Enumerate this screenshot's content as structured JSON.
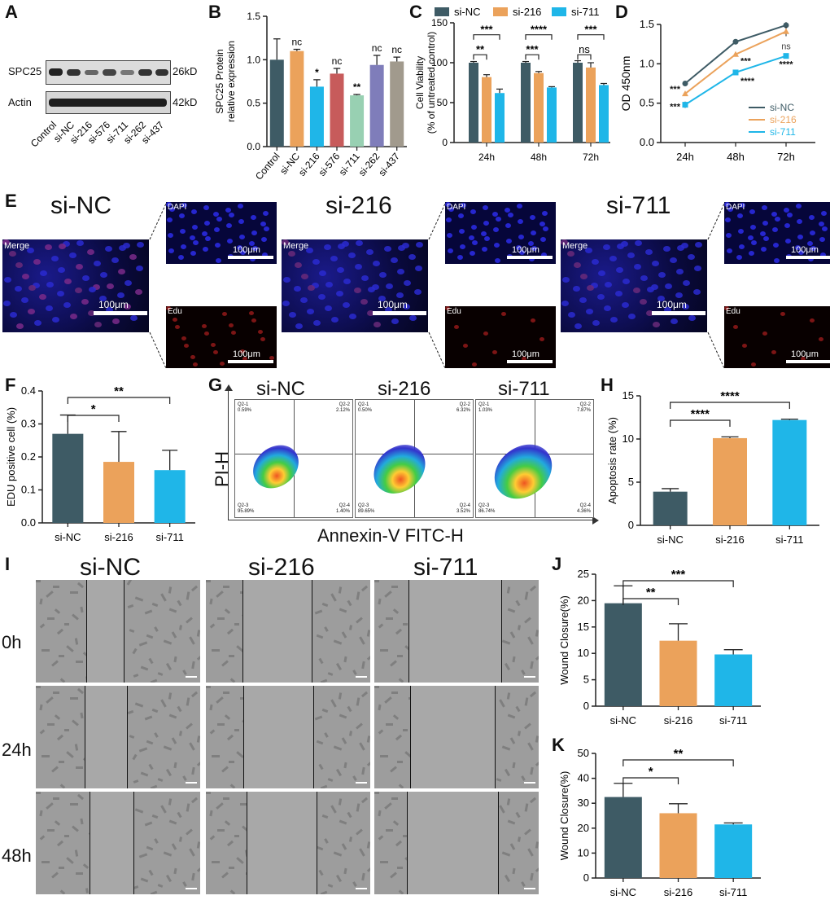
{
  "panels": {
    "A": {
      "letter": "A",
      "bands": [
        {
          "label": "SPC25",
          "size": "26kD"
        },
        {
          "label": "Actin",
          "size": "42kD"
        }
      ],
      "lanes": [
        "Control",
        "si-NC",
        "si-216",
        "si-576",
        "si-711",
        "si-262",
        "si-437"
      ]
    },
    "B": {
      "letter": "B",
      "chart_data": {
        "type": "bar",
        "ylabel": "SPC25 Protein relative expression",
        "ylabel_lines": [
          "SPC25 Protein",
          "relative expression"
        ],
        "ylim": [
          0,
          1.5
        ],
        "yticks": [
          "0.0",
          "0.5",
          "1.0",
          "1.5"
        ],
        "categories": [
          "Control",
          "si-NC",
          "si-216",
          "si-576",
          "si-711",
          "si-262",
          "si-437"
        ],
        "values": [
          1.0,
          1.1,
          0.69,
          0.84,
          0.59,
          0.94,
          0.98
        ],
        "errors": [
          0.24,
          0.02,
          0.08,
          0.06,
          0.01,
          0.11,
          0.05
        ],
        "colors": [
          "#3e5b65",
          "#eba25b",
          "#1fb6e8",
          "#c75b5b",
          "#98d0b2",
          "#7f7dba",
          "#a19a8d"
        ],
        "annotations": [
          "",
          "nc",
          "*",
          "nc",
          "**",
          "nc",
          "nc"
        ]
      }
    },
    "C": {
      "letter": "C",
      "chart_data": {
        "type": "bar",
        "ylabel_lines": [
          "Cell Viability",
          "(% of untreated control)"
        ],
        "ylim": [
          0,
          150
        ],
        "yticks": [
          "0",
          "50",
          "100",
          "150"
        ],
        "categories": [
          "24h",
          "48h",
          "72h"
        ],
        "legend": [
          "si-NC",
          "si-216",
          "si-711"
        ],
        "colors": [
          "#3e5b65",
          "#eba25b",
          "#1fb6e8"
        ],
        "series": [
          {
            "name": "si-NC",
            "values": [
              100,
              100,
              100
            ],
            "errors": [
              1.5,
              1.5,
              2.5
            ]
          },
          {
            "name": "si-216",
            "values": [
              82,
              87,
              94
            ],
            "errors": [
              3,
              2,
              6
            ]
          },
          {
            "name": "si-711",
            "values": [
              62,
              69,
              72
            ],
            "errors": [
              5,
              1,
              2
            ]
          }
        ],
        "brackets": [
          {
            "cat": 0,
            "from": 0,
            "to": 1,
            "label": "**",
            "y": 110
          },
          {
            "cat": 0,
            "from": 0,
            "to": 2,
            "label": "***",
            "y": 135
          },
          {
            "cat": 1,
            "from": 0,
            "to": 1,
            "label": "***",
            "y": 110
          },
          {
            "cat": 1,
            "from": 0,
            "to": 2,
            "label": "****",
            "y": 135
          },
          {
            "cat": 2,
            "from": 0,
            "to": 1,
            "label": "ns",
            "y": 110
          },
          {
            "cat": 2,
            "from": 0,
            "to": 2,
            "label": "***",
            "y": 135
          }
        ]
      }
    },
    "D": {
      "letter": "D",
      "chart_data": {
        "type": "line",
        "ylabel": "OD 450nm",
        "ylim": [
          0,
          1.5
        ],
        "yticks": [
          "0.0",
          "0.5",
          "1.0",
          "1.5"
        ],
        "x": [
          "24h",
          "48h",
          "72h"
        ],
        "legend": [
          "si-NC",
          "si-216",
          "si-711"
        ],
        "colors": [
          "#3e5b65",
          "#eba25b",
          "#1fb6e8"
        ],
        "series": [
          {
            "name": "si-NC",
            "values": [
              0.75,
              1.28,
              1.49
            ],
            "errors": [
              0.01,
              0.01,
              0.04
            ]
          },
          {
            "name": "si-216",
            "values": [
              0.62,
              1.12,
              1.41
            ],
            "errors": [
              0.02,
              0.02,
              0.06
            ]
          },
          {
            "name": "si-711",
            "values": [
              0.48,
              0.89,
              1.1
            ],
            "errors": [
              0.04,
              0.02,
              0.01
            ]
          }
        ],
        "annotations": [
          {
            "series": 1,
            "point": 0,
            "label": "***"
          },
          {
            "series": 2,
            "point": 0,
            "label": "***"
          },
          {
            "series": 1,
            "point": 1,
            "label": "***"
          },
          {
            "series": 2,
            "point": 1,
            "label": "****"
          },
          {
            "series": 1,
            "point": 2,
            "label": "ns"
          },
          {
            "series": 2,
            "point": 2,
            "label": "****"
          }
        ]
      }
    },
    "E": {
      "letter": "E",
      "groups": [
        {
          "title": "si-NC",
          "merge": "Merge",
          "dapi": "DAPI",
          "edu": "Edu",
          "scale": "100μm"
        },
        {
          "title": "si-216",
          "merge": "Merge",
          "dapi": "DAPI",
          "edu": "Edu",
          "scale": "100μm"
        },
        {
          "title": "si-711",
          "merge": "Merge",
          "dapi": "DAPI",
          "edu": "Edu",
          "scale": "100μm"
        }
      ]
    },
    "F": {
      "letter": "F",
      "chart_data": {
        "type": "bar",
        "ylabel": "EDU positive cell (%)",
        "ylim": [
          0,
          0.4
        ],
        "yticks": [
          "0.0",
          "0.1",
          "0.2",
          "0.3",
          "0.4"
        ],
        "categories": [
          "si-NC",
          "si-216",
          "si-711"
        ],
        "values": [
          0.27,
          0.185,
          0.16
        ],
        "errors": [
          0.057,
          0.092,
          0.06
        ],
        "colors": [
          "#3e5b65",
          "#eba25b",
          "#1fb6e8"
        ],
        "brackets": [
          {
            "from": 0,
            "to": 1,
            "label": "*"
          },
          {
            "from": 0,
            "to": 2,
            "label": "**"
          }
        ]
      }
    },
    "G": {
      "letter": "G",
      "xlabel": "Annexin-V FITC-H",
      "ylabel": "PI-H",
      "plots": [
        {
          "title": "si-NC",
          "q1": "Q2-1\n0.59%",
          "q2": "Q2-2\n2.12%",
          "q3": "Q2-3\n95.89%",
          "q4": "Q2-4\n1.40%"
        },
        {
          "title": "si-216",
          "q1": "Q2-1\n0.50%",
          "q2": "Q2-2\n6.32%",
          "q3": "Q2-3\n89.65%",
          "q4": "Q2-4\n3.52%"
        },
        {
          "title": "si-711",
          "q1": "Q2-1\n1.03%",
          "q2": "Q2-2\n7.87%",
          "q3": "Q2-3\n86.74%",
          "q4": "Q2-4\n4.36%"
        }
      ]
    },
    "H": {
      "letter": "H",
      "chart_data": {
        "type": "bar",
        "ylabel": "Apoptosis rate (%)",
        "ylim": [
          0,
          15
        ],
        "yticks": [
          "0",
          "5",
          "10",
          "15"
        ],
        "categories": [
          "si-NC",
          "si-216",
          "si-711"
        ],
        "values": [
          3.9,
          10.1,
          12.2
        ],
        "errors": [
          0.35,
          0.15,
          0.1
        ],
        "colors": [
          "#3e5b65",
          "#eba25b",
          "#1fb6e8"
        ],
        "brackets": [
          {
            "from": 0,
            "to": 1,
            "label": "****"
          },
          {
            "from": 0,
            "to": 2,
            "label": "****"
          }
        ]
      }
    },
    "I": {
      "letter": "I",
      "columns": [
        "si-NC",
        "si-216",
        "si-711"
      ],
      "rows": [
        "0h",
        "24h",
        "48h"
      ]
    },
    "J": {
      "letter": "J",
      "chart_data": {
        "type": "bar",
        "ylabel": "Wound Closure(%)",
        "ylim": [
          0,
          25
        ],
        "yticks": [
          "0",
          "5",
          "10",
          "15",
          "20",
          "25"
        ],
        "categories": [
          "si-NC",
          "si-216",
          "si-711"
        ],
        "values": [
          19.5,
          12.4,
          9.8
        ],
        "errors": [
          3.3,
          3.2,
          0.9
        ],
        "colors": [
          "#3e5b65",
          "#eba25b",
          "#1fb6e8"
        ],
        "brackets": [
          {
            "from": 0,
            "to": 1,
            "label": "**"
          },
          {
            "from": 0,
            "to": 2,
            "label": "***"
          }
        ]
      }
    },
    "K": {
      "letter": "K",
      "chart_data": {
        "type": "bar",
        "ylabel": "Wound Closure(%)",
        "ylim": [
          0,
          50
        ],
        "yticks": [
          "0",
          "10",
          "20",
          "30",
          "40",
          "50"
        ],
        "categories": [
          "si-NC",
          "si-216",
          "si-711"
        ],
        "values": [
          32.5,
          26.0,
          21.5
        ],
        "errors": [
          5.5,
          3.8,
          0.6
        ],
        "colors": [
          "#3e5b65",
          "#eba25b",
          "#1fb6e8"
        ],
        "brackets": [
          {
            "from": 0,
            "to": 1,
            "label": "*"
          },
          {
            "from": 0,
            "to": 2,
            "label": "**"
          }
        ]
      }
    }
  }
}
